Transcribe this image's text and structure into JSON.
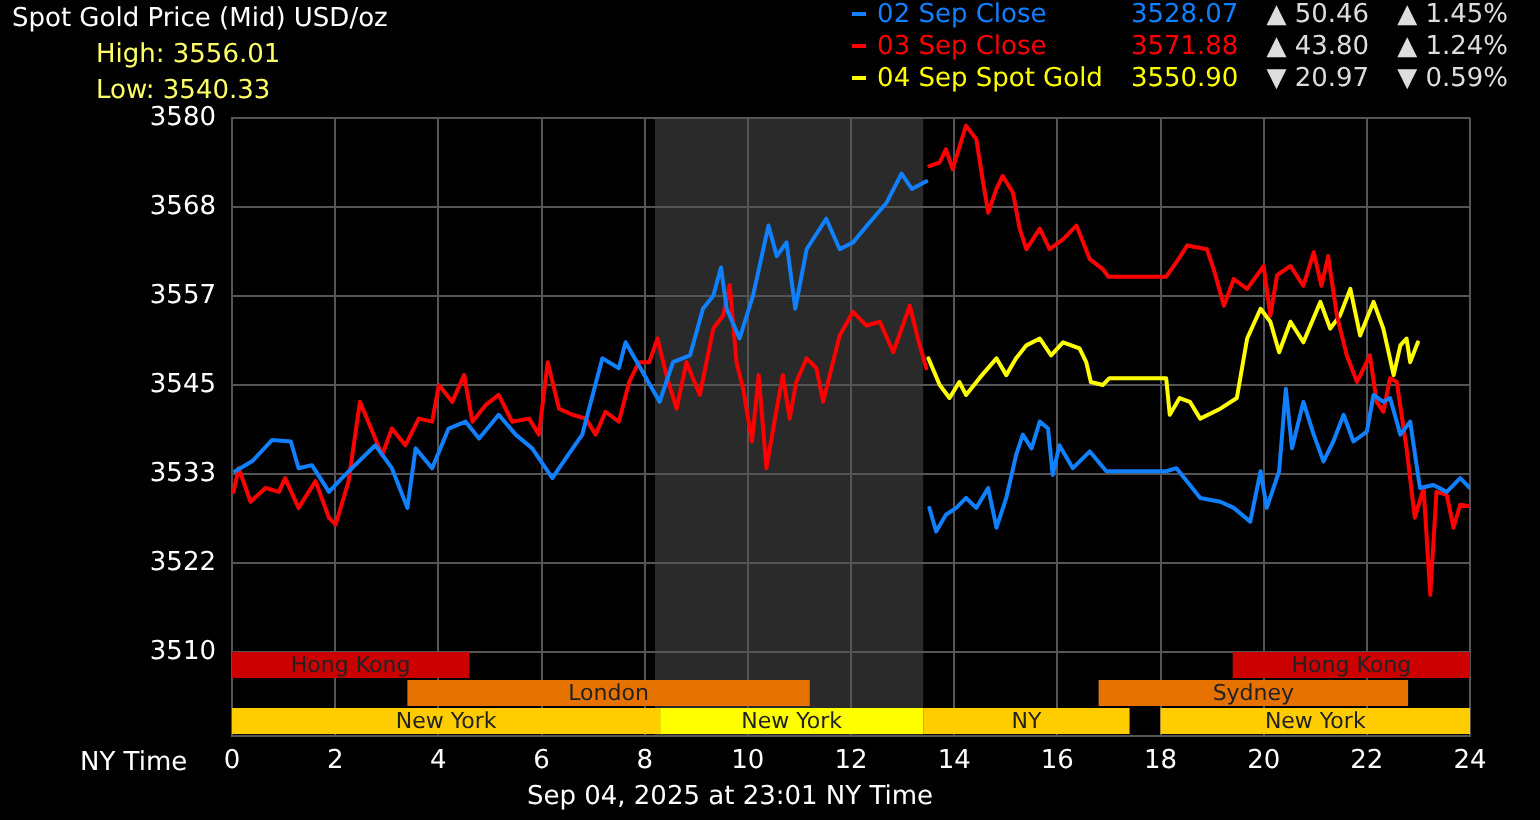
{
  "chart_data": {
    "type": "line",
    "title": "Spot Gold Price (Mid) USD/oz",
    "xlabel": "NY Time",
    "annotations": [
      "High: 3556.01",
      "Low: 3540.33",
      "3528.07",
      "▲ 50.46",
      "▲ 1.45%",
      "3571.88",
      "▲ 43.80",
      "▲ 1.24%",
      "3550.90",
      "▼ 20.97",
      "▼ 0.59%",
      "Sep 04, 2025 at 23:01 NY Time"
    ],
    "xlim": [
      0,
      24
    ],
    "xticks": [
      0,
      2,
      4,
      6,
      8,
      10,
      12,
      14,
      16,
      18,
      20,
      22,
      24
    ],
    "ylim": [
      3499,
      3580
    ],
    "yticks": [
      3510,
      {
        "value": 3521.67,
        "label": "3522"
      },
      {
        "value": 3533.33,
        "label": "3533"
      },
      3545,
      {
        "value": 3556.67,
        "label": "3557"
      },
      {
        "value": 3568.33,
        "label": "3568"
      },
      3580
    ],
    "grid": true,
    "legend": "top right",
    "line_style": "solid",
    "bands": [
      {
        "axis": "x",
        "from": 8.2,
        "to": 13.4,
        "color": "#2a2a2a"
      },
      {
        "axis": "x",
        "from": 0,
        "to": 4.6,
        "label": "Hong Kong",
        "color": "#cc0000"
      },
      {
        "axis": "x",
        "from": 19.4,
        "to": 24,
        "label": "Hong Kong",
        "color": "#cc0000"
      },
      {
        "axis": "x",
        "from": 3.4,
        "to": 11.2,
        "label": "London",
        "color": "#e67300"
      },
      {
        "axis": "x",
        "from": 16.8,
        "to": 22.8,
        "label": "Sydney",
        "color": "#e67300"
      },
      {
        "axis": "x",
        "from": 0,
        "to": 8.3,
        "label": "New York",
        "color": "#ffcc00"
      },
      {
        "axis": "x",
        "from": 8.3,
        "to": 13.4,
        "label": "New York",
        "color": "#ffff00"
      },
      {
        "axis": "x",
        "from": 13.4,
        "to": 17.4,
        "label": "NY",
        "color": "#ffcc00"
      },
      {
        "axis": "x",
        "from": 18,
        "to": 24,
        "label": "New York",
        "color": "#ffcc00"
      }
    ],
    "series": [
      {
        "name": "02 Sep Close",
        "color": "#1080ff",
        "x": [
          0.06,
          0.39,
          0.78,
          1.14,
          1.29,
          1.55,
          1.88,
          2.13,
          2.52,
          2.78,
          3.1,
          3.4,
          3.56,
          3.88,
          4.2,
          4.53,
          4.79,
          5.17,
          5.5,
          5.82,
          6.21,
          6.47,
          6.79,
          7.18,
          7.5,
          7.63,
          7.96,
          8.29,
          8.55,
          8.88,
          9.13,
          9.33,
          9.48,
          9.59,
          9.84,
          10.1,
          10.4,
          10.56,
          10.75,
          10.92,
          11.14,
          11.52,
          11.78,
          12.04,
          12.36,
          12.69,
          12.98,
          13.18,
          13.46,
          13.49,
          13.52,
          13.65,
          13.84,
          14.04,
          14.23,
          14.43,
          14.66,
          14.82,
          15.01,
          15.2,
          15.33,
          15.5,
          15.66,
          15.82,
          15.91,
          16.04,
          16.3,
          16.63,
          16.95,
          18.11,
          18.31,
          18.57,
          18.77,
          19.16,
          19.42,
          19.74,
          19.94,
          20.06,
          20.3,
          20.43,
          20.55,
          20.77,
          20.97,
          21.16,
          21.35,
          21.55,
          21.74,
          22,
          22.13,
          22.32,
          22.45,
          22.65,
          22.84,
          23.03,
          23.29,
          23.55,
          23.81,
          24
        ],
        "values": [
          3533.7,
          3535,
          3537.8,
          3537.6,
          3534.1,
          3534.5,
          3531,
          3532.8,
          3535.4,
          3537.1,
          3534.1,
          3528.9,
          3536.7,
          3534.1,
          3539.3,
          3540.2,
          3538,
          3541.1,
          3538.5,
          3536.7,
          3532.8,
          3535.4,
          3538.5,
          3548.5,
          3547.2,
          3550.6,
          3546.7,
          3542.8,
          3548,
          3548.9,
          3555,
          3556.7,
          3560.4,
          3555,
          3551.1,
          3556.7,
          3565.9,
          3561.9,
          3563.7,
          3555,
          3562.8,
          3566.8,
          3562.8,
          3563.7,
          3566.3,
          3568.9,
          3572.7,
          3570.7,
          3571.7,
          null,
          3528.9,
          3525.8,
          3528,
          3528.9,
          3530.2,
          3528.9,
          3531.5,
          3526.3,
          3530.2,
          3535.8,
          3538.5,
          3536.7,
          3540.2,
          3539.3,
          3533.2,
          3537.1,
          3534.1,
          3536.3,
          3533.7,
          3533.7,
          3534.1,
          3531.9,
          3530.2,
          3529.7,
          3528.9,
          3527.1,
          3533.7,
          3528.9,
          3533.7,
          3544.5,
          3536.7,
          3542.8,
          3538.5,
          3535,
          3537.6,
          3541.1,
          3537.6,
          3538.9,
          3543.7,
          3542.8,
          3543.3,
          3538.5,
          3540.2,
          3531.5,
          3531.9,
          3531,
          3532.8,
          3531.5
        ]
      },
      {
        "name": "03 Sep Close",
        "color": "#ff0000",
        "x": [
          0.03,
          0.13,
          0.36,
          0.65,
          0.91,
          1.03,
          1.29,
          1.62,
          1.88,
          2.01,
          2.26,
          2.48,
          2.72,
          2.91,
          3.1,
          3.36,
          3.62,
          3.88,
          4.01,
          4.27,
          4.5,
          4.66,
          4.92,
          5.17,
          5.43,
          5.76,
          5.95,
          6.12,
          6.34,
          6.6,
          6.86,
          7.05,
          7.24,
          7.5,
          7.7,
          7.89,
          8.09,
          8.25,
          8.42,
          8.62,
          8.81,
          9.07,
          9.33,
          9.52,
          9.65,
          9.78,
          9.91,
          10.08,
          10.21,
          10.36,
          10.56,
          10.68,
          10.81,
          10.94,
          11.14,
          11.33,
          11.46,
          11.78,
          12.04,
          12.3,
          12.56,
          12.82,
          13.14,
          13.3,
          13.46,
          13.49,
          13.52,
          13.72,
          13.84,
          13.97,
          14.23,
          14.43,
          14.56,
          14.66,
          14.82,
          14.94,
          15.14,
          15.27,
          15.4,
          15.66,
          15.85,
          16.11,
          16.37,
          16.63,
          16.88,
          16.99,
          18.11,
          18.31,
          18.52,
          18.9,
          19.03,
          19.23,
          19.42,
          19.68,
          20,
          20.13,
          20.26,
          20.52,
          20.77,
          20.97,
          21.12,
          21.25,
          21.42,
          21.61,
          21.81,
          21.94,
          22.06,
          22.19,
          22.32,
          22.45,
          22.58,
          22.77,
          22.93,
          23.1,
          23.23,
          23.35,
          23.55,
          23.68,
          23.81,
          24
        ],
        "values": [
          3531,
          3534.1,
          3529.7,
          3531.5,
          3531,
          3532.8,
          3528.9,
          3532.4,
          3527.6,
          3526.7,
          3532.4,
          3542.8,
          3538.9,
          3535.8,
          3539.3,
          3537.1,
          3540.6,
          3540.2,
          3545,
          3542.8,
          3546.3,
          3540.2,
          3542.4,
          3543.7,
          3540.2,
          3540.6,
          3538.5,
          3548,
          3541.9,
          3541.1,
          3540.6,
          3538.5,
          3541.5,
          3540.2,
          3545.4,
          3548,
          3548,
          3551.1,
          3546.3,
          3541.9,
          3548,
          3543.7,
          3552.4,
          3554.1,
          3558.1,
          3548,
          3544.5,
          3537.6,
          3546.3,
          3534.1,
          3541.9,
          3546.3,
          3540.6,
          3545.4,
          3548.5,
          3547.2,
          3542.8,
          3551.5,
          3554.6,
          3552.8,
          3553.3,
          3549.3,
          3555.4,
          3551,
          3547.2,
          null,
          3573.7,
          3574.2,
          3575.9,
          3573.3,
          3579,
          3577.2,
          3571.6,
          3567.6,
          3570.7,
          3572.4,
          3570.2,
          3565.5,
          3562.8,
          3565.5,
          3562.8,
          3564.1,
          3565.9,
          3561.5,
          3560.2,
          3559.2,
          3559.2,
          3561.1,
          3563.3,
          3562.8,
          3560.2,
          3555.4,
          3558.9,
          3557.6,
          3560.6,
          3554.1,
          3559.4,
          3560.6,
          3558,
          3562.4,
          3558,
          3561.9,
          3554.1,
          3548.9,
          3545.4,
          3547.2,
          3548.9,
          3542.8,
          3541.5,
          3545.9,
          3545.4,
          3536.7,
          3527.6,
          3531.5,
          3517.5,
          3531,
          3530.6,
          3526.3,
          3529.3,
          3529.1
        ]
      },
      {
        "name": "04 Sep Spot Gold",
        "color": "#ffff00",
        "x": [
          13.5,
          13.72,
          13.91,
          14.1,
          14.23,
          14.49,
          14.82,
          15.01,
          15.2,
          15.4,
          15.66,
          15.88,
          16.11,
          16.43,
          16.56,
          16.65,
          16.88,
          17.01,
          18.11,
          18.18,
          18.37,
          18.57,
          18.77,
          19.16,
          19.48,
          19.68,
          19.94,
          20.13,
          20.3,
          20.52,
          20.77,
          21.1,
          21.29,
          21.48,
          21.68,
          21.87,
          22.13,
          22.32,
          22.52,
          22.65,
          22.77,
          22.84,
          22.99
        ],
        "values": [
          3548.5,
          3545,
          3543.3,
          3545.4,
          3543.7,
          3545.9,
          3548.5,
          3546.3,
          3548.5,
          3550.2,
          3551.1,
          3548.9,
          3550.6,
          3549.8,
          3548,
          3545.4,
          3545,
          3545.9,
          3545.9,
          3541.1,
          3543.3,
          3542.8,
          3540.6,
          3541.9,
          3543.3,
          3551.1,
          3555,
          3553.3,
          3549.3,
          3553.3,
          3550.6,
          3555.9,
          3552.4,
          3554.1,
          3557.6,
          3551.5,
          3555.9,
          3552.4,
          3546.3,
          3550.2,
          3551.1,
          3548,
          3550.6
        ]
      }
    ]
  }
}
